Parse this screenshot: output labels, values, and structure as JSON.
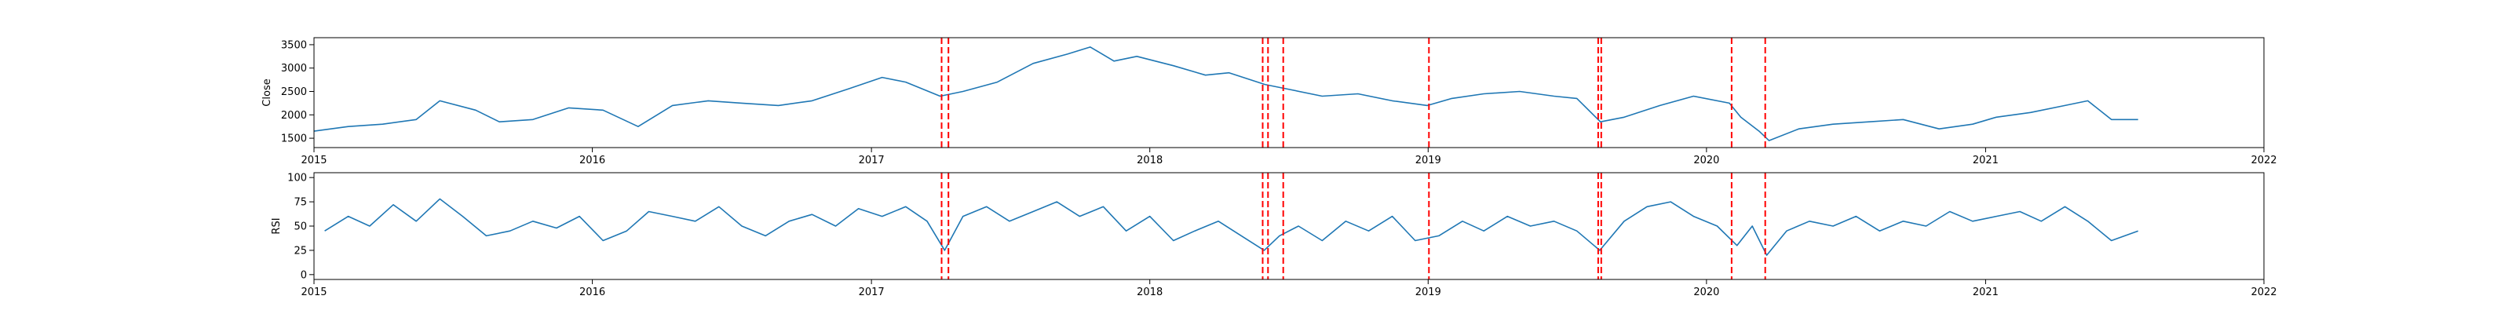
{
  "colors": {
    "series": "#1f77b4",
    "events": "#ff0000"
  },
  "chart_data": [
    {
      "type": "line",
      "ylabel": "Close",
      "xlabel": "",
      "xlim": [
        "2015-01-01",
        "2022-01-01"
      ],
      "ylim": [
        1300,
        3650
      ],
      "xticks": [
        "2015",
        "2016",
        "2017",
        "2018",
        "2019",
        "2020",
        "2021",
        "2022"
      ],
      "yticks": [
        1500,
        2000,
        2500,
        3000,
        3500
      ],
      "grid": false,
      "series": [
        {
          "x": [
            "2015-01-01",
            "2015-02-15",
            "2015-04-01",
            "2015-05-15",
            "2015-06-15",
            "2015-08-01",
            "2015-09-01",
            "2015-10-15",
            "2015-12-01",
            "2016-01-15",
            "2016-03-01",
            "2016-04-15",
            "2016-06-01",
            "2016-07-15",
            "2016-09-01",
            "2016-10-15",
            "2016-12-01",
            "2017-01-15",
            "2017-02-15",
            "2017-04-01",
            "2017-05-01",
            "2017-06-15",
            "2017-08-01",
            "2017-09-15",
            "2017-10-15",
            "2017-11-15",
            "2017-12-15",
            "2018-02-01",
            "2018-03-15",
            "2018-04-15",
            "2018-06-01",
            "2018-07-01",
            "2018-08-15",
            "2018-10-01",
            "2018-11-15",
            "2018-12-31",
            "2019-02-01",
            "2019-03-15",
            "2019-05-01",
            "2019-06-15",
            "2019-07-15",
            "2019-08-15",
            "2019-09-15",
            "2019-11-01",
            "2019-12-15",
            "2020-01-31",
            "2020-02-15",
            "2020-03-10",
            "2020-03-23",
            "2020-05-01",
            "2020-06-15",
            "2020-08-01",
            "2020-09-15",
            "2020-11-01",
            "2020-12-15",
            "2021-01-15",
            "2021-03-01",
            "2021-04-15",
            "2021-05-15",
            "2021-06-15",
            "2021-07-20"
          ],
          "y": [
            1650,
            1750,
            1800,
            1900,
            2300,
            2100,
            1850,
            1900,
            2150,
            2100,
            1750,
            2200,
            2300,
            2250,
            2200,
            2300,
            2550,
            2800,
            2700,
            2400,
            2500,
            2700,
            3100,
            3300,
            3450,
            3150,
            3250,
            3050,
            2850,
            2900,
            2650,
            2550,
            2400,
            2450,
            2300,
            2200,
            2350,
            2450,
            2500,
            2400,
            2350,
            1850,
            1950,
            2200,
            2400,
            2250,
            1950,
            1650,
            1450,
            1700,
            1800,
            1850,
            1900,
            1700,
            1800,
            1950,
            2050,
            2200,
            2300,
            1900,
            1900
          ]
        }
      ]
    },
    {
      "type": "line",
      "ylabel": "RSI",
      "xlabel": "",
      "xlim": [
        "2015-01-01",
        "2022-01-01"
      ],
      "ylim": [
        -5,
        105
      ],
      "xticks": [
        "2015",
        "2016",
        "2017",
        "2018",
        "2019",
        "2020",
        "2021",
        "2022"
      ],
      "yticks": [
        0,
        25,
        50,
        75,
        100
      ],
      "grid": false,
      "series": [
        {
          "x": [
            "2015-01-15",
            "2015-02-15",
            "2015-03-15",
            "2015-04-15",
            "2015-05-15",
            "2015-06-15",
            "2015-07-15",
            "2015-08-15",
            "2015-09-15",
            "2015-10-15",
            "2015-11-15",
            "2015-12-15",
            "2016-01-15",
            "2016-02-15",
            "2016-03-15",
            "2016-04-15",
            "2016-05-15",
            "2016-06-15",
            "2016-07-15",
            "2016-08-15",
            "2016-09-15",
            "2016-10-15",
            "2016-11-15",
            "2016-12-15",
            "2017-01-15",
            "2017-02-15",
            "2017-03-15",
            "2017-04-07",
            "2017-05-01",
            "2017-06-01",
            "2017-07-01",
            "2017-08-01",
            "2017-09-01",
            "2017-10-01",
            "2017-11-01",
            "2017-12-01",
            "2018-01-01",
            "2018-02-01",
            "2018-03-01",
            "2018-04-01",
            "2018-05-01",
            "2018-05-31",
            "2018-06-20",
            "2018-07-15",
            "2018-08-15",
            "2018-09-15",
            "2018-10-15",
            "2018-11-15",
            "2018-12-15",
            "2019-01-15",
            "2019-02-15",
            "2019-03-15",
            "2019-04-15",
            "2019-05-15",
            "2019-06-15",
            "2019-07-15",
            "2019-08-14",
            "2019-09-15",
            "2019-10-15",
            "2019-11-15",
            "2019-12-15",
            "2020-01-15",
            "2020-02-10",
            "2020-03-01",
            "2020-03-20",
            "2020-04-15",
            "2020-05-15",
            "2020-06-15",
            "2020-07-15",
            "2020-08-15",
            "2020-09-15",
            "2020-10-15",
            "2020-11-15",
            "2020-12-15",
            "2021-01-15",
            "2021-02-15",
            "2021-03-15",
            "2021-04-15",
            "2021-05-15",
            "2021-06-15",
            "2021-07-20"
          ],
          "y": [
            45,
            60,
            50,
            72,
            55,
            78,
            60,
            40,
            45,
            55,
            48,
            60,
            35,
            45,
            65,
            60,
            55,
            70,
            50,
            40,
            55,
            62,
            50,
            68,
            60,
            70,
            55,
            25,
            60,
            70,
            55,
            65,
            75,
            60,
            70,
            45,
            60,
            35,
            45,
            55,
            40,
            25,
            40,
            50,
            35,
            55,
            45,
            60,
            35,
            40,
            55,
            45,
            60,
            50,
            55,
            45,
            25,
            55,
            70,
            75,
            60,
            50,
            30,
            50,
            20,
            45,
            55,
            50,
            60,
            45,
            55,
            50,
            65,
            55,
            60,
            65,
            55,
            70,
            55,
            35,
            45
          ]
        }
      ]
    }
  ],
  "event_dates": [
    "2017-04-03",
    "2017-04-12",
    "2018-05-29",
    "2018-06-05",
    "2018-06-25",
    "2019-01-02",
    "2019-08-12",
    "2019-08-16",
    "2020-02-03",
    "2020-03-18"
  ]
}
